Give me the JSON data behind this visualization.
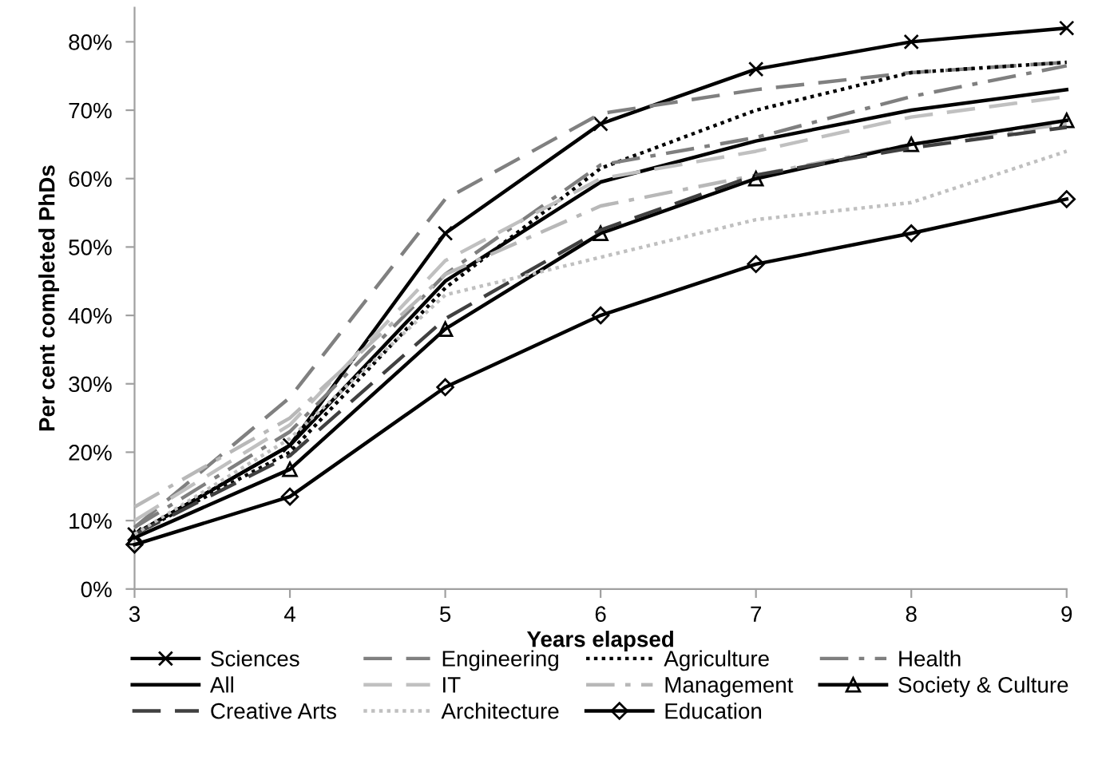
{
  "chart_data": {
    "type": "line",
    "xlabel": "Years elapsed",
    "ylabel": "Per cent completed PhDs",
    "x": [
      3,
      4,
      5,
      6,
      7,
      8,
      9
    ],
    "xlim": [
      3,
      9
    ],
    "xticks": [
      3,
      4,
      5,
      6,
      7,
      8,
      9
    ],
    "ylim": [
      0,
      85
    ],
    "yticks": [
      {
        "value": 0,
        "label": "0%"
      },
      {
        "value": 10,
        "label": "10%"
      },
      {
        "value": 20,
        "label": "20%"
      },
      {
        "value": 30,
        "label": "30%"
      },
      {
        "value": 40,
        "label": "40%"
      },
      {
        "value": 50,
        "label": "50%"
      },
      {
        "value": 60,
        "label": "60%"
      },
      {
        "value": 70,
        "label": "70%"
      },
      {
        "value": 80,
        "label": "80%"
      }
    ],
    "grid": false,
    "legend": "bottom",
    "series": [
      {
        "name": "Sciences",
        "color": "#000000",
        "line_style": "solid",
        "marker": "cross",
        "values": [
          8,
          21,
          52,
          68,
          76,
          80,
          82
        ]
      },
      {
        "name": "Engineering",
        "color": "#808080",
        "line_style": "dashed",
        "marker": "none",
        "values": [
          9,
          28,
          57,
          69.5,
          73,
          75.5,
          77
        ]
      },
      {
        "name": "Agriculture",
        "color": "#000000",
        "line_style": "dotted",
        "marker": "none",
        "values": [
          8,
          20,
          44,
          61.5,
          70,
          75.5,
          77
        ]
      },
      {
        "name": "Health",
        "color": "#7f7f7f",
        "line_style": "dashdot",
        "marker": "none",
        "values": [
          9,
          23,
          46,
          62,
          66,
          72,
          76.5
        ]
      },
      {
        "name": "All",
        "color": "#000000",
        "line_style": "solid",
        "marker": "none",
        "values": [
          8,
          21,
          45,
          59.5,
          65.5,
          70,
          73
        ]
      },
      {
        "name": "IT",
        "color": "#c0c0c0",
        "line_style": "dashed",
        "marker": "none",
        "values": [
          10,
          24,
          48,
          60,
          64,
          69,
          72
        ]
      },
      {
        "name": "Management",
        "color": "#b8b8b8",
        "line_style": "dashdot",
        "marker": "none",
        "values": [
          12,
          25,
          46,
          56,
          60.5,
          65,
          68
        ]
      },
      {
        "name": "Society & Culture",
        "color": "#000000",
        "line_style": "solid",
        "marker": "triangle",
        "values": [
          7.5,
          17.5,
          38,
          52,
          60,
          65,
          68.5
        ]
      },
      {
        "name": "Creative Arts",
        "color": "#404040",
        "line_style": "dashed",
        "marker": "none",
        "values": [
          8,
          19.5,
          39.5,
          52.5,
          60.5,
          64.5,
          67.5
        ]
      },
      {
        "name": "Architecture",
        "color": "#c0c0c0",
        "line_style": "dotted",
        "marker": "none",
        "values": [
          8,
          22,
          43,
          48.5,
          54,
          56.5,
          64
        ]
      },
      {
        "name": "Education",
        "color": "#000000",
        "line_style": "solid",
        "marker": "diamond",
        "values": [
          6.5,
          13.5,
          29.5,
          40,
          47.5,
          52,
          57
        ]
      }
    ]
  }
}
